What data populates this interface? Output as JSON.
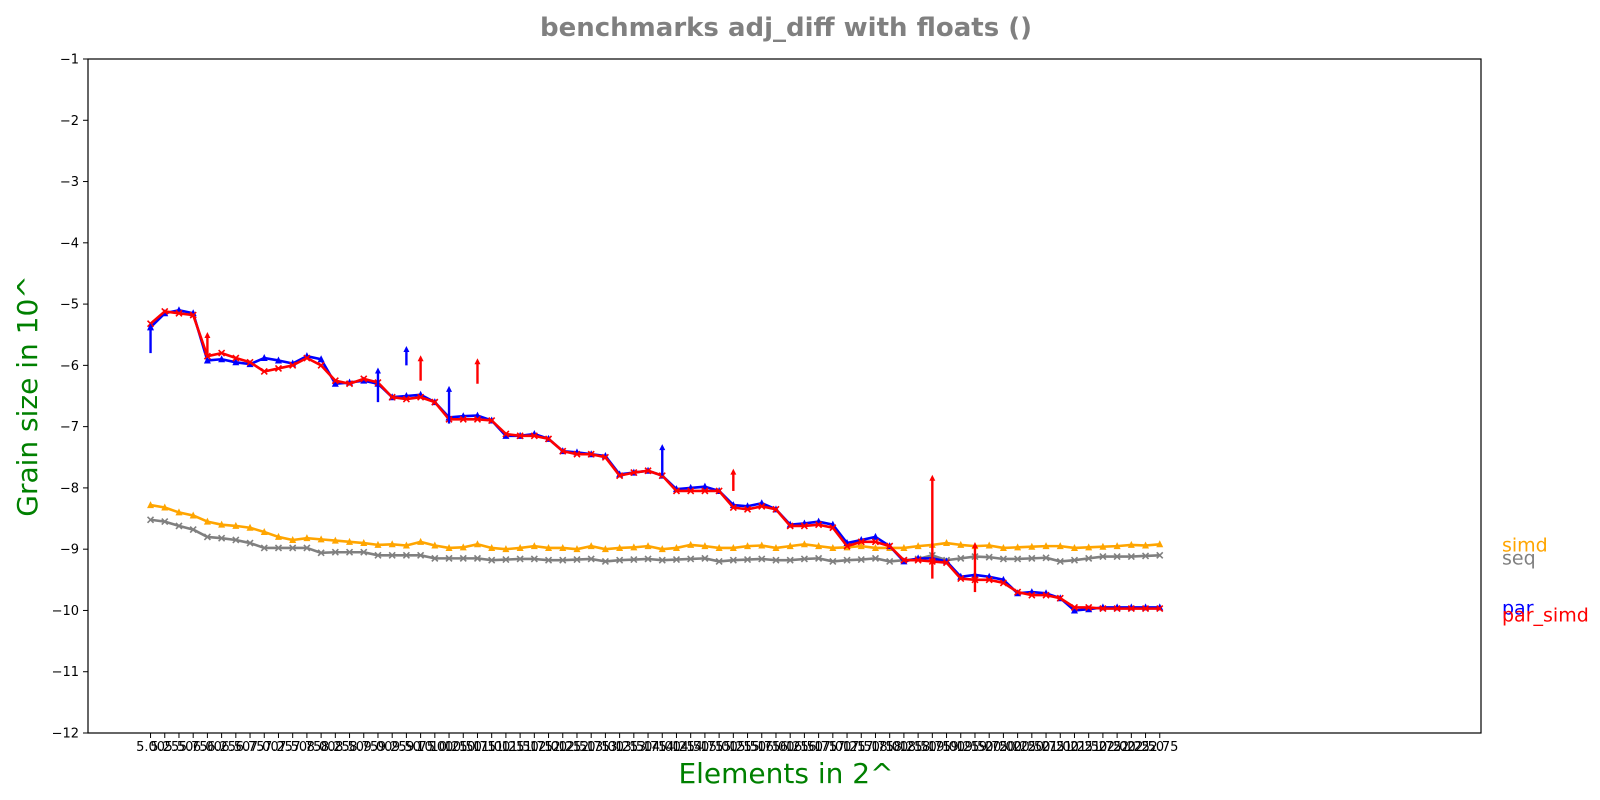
{
  "chart_data": {
    "type": "line",
    "title": "benchmarks adj_diff with floats  ()",
    "xlabel": "Elements in 2^",
    "ylabel": "Grain size in 10^",
    "ylim": [
      -12,
      -1
    ],
    "yticks": [
      -12,
      -11,
      -10,
      -9,
      -8,
      -7,
      -6,
      -5,
      -4,
      -3,
      -2,
      -1
    ],
    "ytick_labels": [
      "−12",
      "−11",
      "−10",
      "−9",
      "−8",
      "−7",
      "−6",
      "−5",
      "−4",
      "−3",
      "−2",
      "−1"
    ],
    "xlim": [
      3.9,
      28.4
    ],
    "xtick_labels": [
      "5.00",
      "5.25",
      "5.50",
      "5.75",
      "6.00",
      "6.25",
      "6.50",
      "6.75",
      "7.00",
      "7.25",
      "7.50",
      "7.75",
      "8.00",
      "8.25",
      "8.50",
      "8.75",
      "9.00",
      "9.25",
      "9.50",
      "9.75",
      "10.00",
      "10.25",
      "10.50",
      "10.75",
      "11.00",
      "11.25",
      "11.50",
      "11.75",
      "12.00",
      "12.25",
      "12.50",
      "12.75",
      "13.00",
      "13.25",
      "13.50",
      "13.75",
      "14.00",
      "14.25",
      "14.50",
      "14.75",
      "15.00",
      "15.25",
      "15.50",
      "15.75",
      "16.00",
      "16.25",
      "16.50",
      "16.75",
      "17.00",
      "17.25",
      "17.50",
      "17.75",
      "18.00",
      "18.25",
      "18.50",
      "18.75",
      "19.00",
      "19.25",
      "19.50",
      "19.75",
      "20.00",
      "20.25",
      "20.50",
      "20.75",
      "21.00",
      "21.25",
      "21.50",
      "21.75",
      "22.00",
      "22.25",
      "22.50",
      "22.75"
    ],
    "x": [
      5.0,
      5.25,
      5.5,
      5.75,
      6.0,
      6.25,
      6.5,
      6.75,
      7.0,
      7.25,
      7.5,
      7.75,
      8.0,
      8.25,
      8.5,
      8.75,
      9.0,
      9.25,
      9.5,
      9.75,
      10.0,
      10.25,
      10.5,
      10.75,
      11.0,
      11.25,
      11.5,
      11.75,
      12.0,
      12.25,
      12.5,
      12.75,
      13.0,
      13.25,
      13.5,
      13.75,
      14.0,
      14.25,
      14.5,
      14.75,
      15.0,
      15.25,
      15.5,
      15.75,
      16.0,
      16.25,
      16.5,
      16.75,
      17.0,
      17.25,
      17.5,
      17.75,
      18.0,
      18.25,
      18.5,
      18.75,
      19.0,
      19.25,
      19.5,
      19.75,
      20.0,
      20.25,
      20.5,
      20.75,
      21.0,
      21.25,
      21.5,
      21.75,
      22.0,
      22.25,
      22.5,
      22.75
    ],
    "grid": false,
    "legend_placement": "right of plot, labels at series end",
    "series": [
      {
        "name": "simd",
        "color": "#ffa500",
        "values": [
          -8.28,
          -8.32,
          -8.4,
          -8.45,
          -8.55,
          -8.6,
          -8.62,
          -8.65,
          -8.72,
          -8.8,
          -8.85,
          -8.82,
          -8.84,
          -8.86,
          -8.88,
          -8.9,
          -8.93,
          -8.92,
          -8.94,
          -8.88,
          -8.94,
          -8.98,
          -8.97,
          -8.92,
          -8.98,
          -9.0,
          -8.98,
          -8.95,
          -8.98,
          -8.98,
          -9.0,
          -8.95,
          -9.0,
          -8.98,
          -8.97,
          -8.95,
          -9.0,
          -8.98,
          -8.93,
          -8.95,
          -8.98,
          -8.98,
          -8.95,
          -8.94,
          -8.98,
          -8.95,
          -8.92,
          -8.95,
          -8.98,
          -8.97,
          -8.95,
          -8.98,
          -8.98,
          -8.98,
          -8.95,
          -8.93,
          -8.9,
          -8.93,
          -8.95,
          -8.94,
          -8.98,
          -8.97,
          -8.96,
          -8.95,
          -8.95,
          -8.98,
          -8.97,
          -8.96,
          -8.95,
          -8.93,
          -8.94,
          -8.92
        ]
      },
      {
        "name": "seq",
        "color": "#808080",
        "values": [
          -8.52,
          -8.55,
          -8.62,
          -8.68,
          -8.8,
          -8.82,
          -8.85,
          -8.9,
          -8.98,
          -8.98,
          -8.98,
          -8.98,
          -9.06,
          -9.05,
          -9.05,
          -9.05,
          -9.1,
          -9.1,
          -9.1,
          -9.1,
          -9.15,
          -9.15,
          -9.15,
          -9.15,
          -9.18,
          -9.17,
          -9.16,
          -9.16,
          -9.18,
          -9.18,
          -9.17,
          -9.16,
          -9.2,
          -9.18,
          -9.17,
          -9.16,
          -9.18,
          -9.17,
          -9.16,
          -9.15,
          -9.2,
          -9.18,
          -9.17,
          -9.16,
          -9.18,
          -9.18,
          -9.16,
          -9.15,
          -9.2,
          -9.18,
          -9.17,
          -9.15,
          -9.2,
          -9.18,
          -9.16,
          -9.1,
          -9.18,
          -9.15,
          -9.12,
          -9.13,
          -9.16,
          -9.16,
          -9.15,
          -9.14,
          -9.2,
          -9.18,
          -9.15,
          -9.12,
          -9.12,
          -9.12,
          -9.11,
          -9.1
        ]
      },
      {
        "name": "par",
        "color": "#0000ff",
        "values": [
          -5.38,
          -5.15,
          -5.1,
          -5.15,
          -5.92,
          -5.9,
          -5.95,
          -5.98,
          -5.88,
          -5.92,
          -5.97,
          -5.85,
          -5.9,
          -6.3,
          -6.28,
          -6.25,
          -6.3,
          -6.52,
          -6.5,
          -6.48,
          -6.6,
          -6.85,
          -6.83,
          -6.82,
          -6.9,
          -7.15,
          -7.15,
          -7.12,
          -7.2,
          -7.4,
          -7.42,
          -7.45,
          -7.48,
          -7.78,
          -7.75,
          -7.72,
          -7.8,
          -8.02,
          -8.0,
          -7.98,
          -8.05,
          -8.28,
          -8.3,
          -8.25,
          -8.35,
          -8.6,
          -8.58,
          -8.55,
          -8.6,
          -8.9,
          -8.85,
          -8.8,
          -8.95,
          -9.2,
          -9.15,
          -9.15,
          -9.2,
          -9.45,
          -9.42,
          -9.45,
          -9.5,
          -9.72,
          -9.7,
          -9.72,
          -9.8,
          -10.0,
          -9.98,
          -9.95,
          -9.95,
          -9.95,
          -9.95,
          -9.95
        ]
      },
      {
        "name": "par_simd",
        "color": "#ff0000",
        "values": [
          -5.32,
          -5.12,
          -5.15,
          -5.18,
          -5.85,
          -5.8,
          -5.88,
          -5.95,
          -6.1,
          -6.05,
          -6.0,
          -5.88,
          -6.0,
          -6.25,
          -6.3,
          -6.22,
          -6.28,
          -6.52,
          -6.55,
          -6.52,
          -6.6,
          -6.88,
          -6.88,
          -6.88,
          -6.9,
          -7.12,
          -7.15,
          -7.15,
          -7.2,
          -7.4,
          -7.45,
          -7.45,
          -7.5,
          -7.8,
          -7.75,
          -7.72,
          -7.8,
          -8.05,
          -8.05,
          -8.05,
          -8.05,
          -8.32,
          -8.35,
          -8.3,
          -8.35,
          -8.62,
          -8.62,
          -8.6,
          -8.65,
          -8.95,
          -8.88,
          -8.88,
          -8.95,
          -9.18,
          -9.18,
          -9.2,
          -9.22,
          -9.48,
          -9.5,
          -9.5,
          -9.55,
          -9.7,
          -9.75,
          -9.75,
          -9.8,
          -9.95,
          -9.95,
          -9.97,
          -9.97,
          -9.97,
          -9.97,
          -9.97
        ]
      }
    ],
    "spikes": [
      {
        "series": "par_simd",
        "x": 18.75,
        "from": -9.48,
        "to": -7.85
      },
      {
        "series": "par_simd",
        "x": 19.5,
        "from": -9.7,
        "to": -8.95
      },
      {
        "series": "par",
        "x": 9.0,
        "from": -6.6,
        "to": -6.1
      },
      {
        "series": "par",
        "x": 14.0,
        "from": -7.8,
        "to": -7.35
      },
      {
        "series": "par",
        "x": 10.25,
        "from": -6.95,
        "to": -6.4
      },
      {
        "series": "par_simd",
        "x": 9.75,
        "from": -6.25,
        "to": -5.9
      },
      {
        "series": "par_simd",
        "x": 10.75,
        "from": -6.3,
        "to": -5.95
      },
      {
        "series": "par",
        "x": 9.5,
        "from": -6.0,
        "to": -5.75
      },
      {
        "series": "par_simd",
        "x": 15.25,
        "from": -8.05,
        "to": -7.75
      },
      {
        "series": "par",
        "x": 5.0,
        "from": -5.8,
        "to": -5.38
      },
      {
        "series": "par_simd",
        "x": 6.0,
        "from": -5.85,
        "to": -5.52
      }
    ]
  }
}
